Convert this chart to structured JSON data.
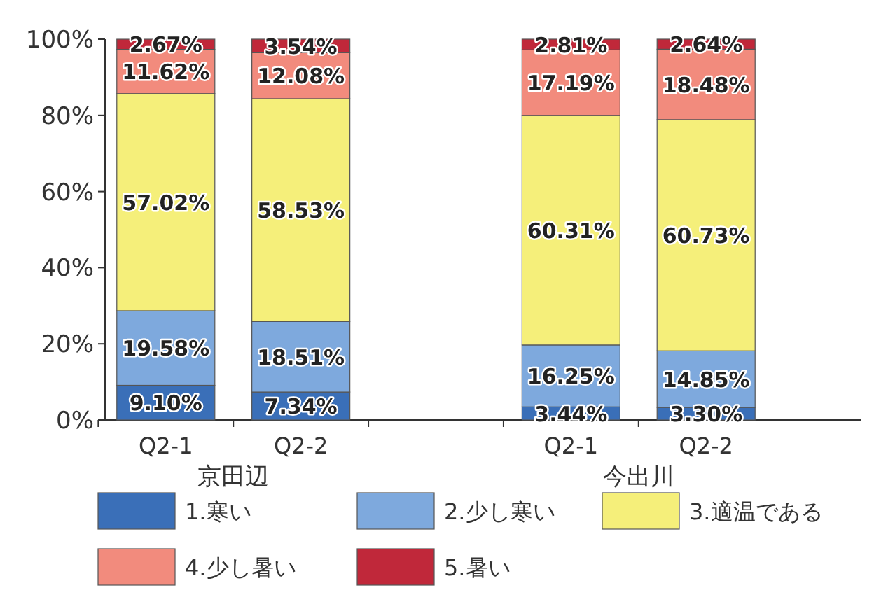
{
  "chart_data": {
    "type": "bar",
    "stacked": true,
    "categories": [
      "Q2-1",
      "Q2-2",
      null,
      "Q2-1",
      "Q2-2"
    ],
    "ylim": [
      0,
      100
    ],
    "yticks": [
      {
        "value": 0,
        "label": "0%"
      },
      {
        "value": 20,
        "label": "20%"
      },
      {
        "value": 40,
        "label": "40%"
      },
      {
        "value": 60,
        "label": "60%"
      },
      {
        "value": 80,
        "label": "80%"
      },
      {
        "value": 100,
        "label": "100%"
      }
    ],
    "legend": "bottom",
    "annotations": [
      "京田辺",
      "今出川"
    ],
    "series": [
      {
        "name": "1.寒い",
        "color": "#3a6fb8",
        "values": [
          9.1,
          7.34,
          null,
          3.44,
          3.3
        ],
        "value_labels": [
          "9.10%",
          "7.34%",
          null,
          "3.44%",
          "3.30%"
        ]
      },
      {
        "name": "2.少し寒い",
        "color": "#7ea9dd",
        "values": [
          19.58,
          18.51,
          null,
          16.25,
          14.85
        ],
        "value_labels": [
          "19.58%",
          "18.51%",
          null,
          "16.25%",
          "14.85%"
        ]
      },
      {
        "name": "3.適温である",
        "color": "#f5ef7a",
        "values": [
          57.02,
          58.53,
          null,
          60.31,
          60.73
        ],
        "value_labels": [
          "57.02%",
          "58.53%",
          null,
          "60.31%",
          "60.73%"
        ]
      },
      {
        "name": "4.少し暑い",
        "color": "#f28b7d",
        "values": [
          11.62,
          12.08,
          null,
          17.19,
          18.48
        ],
        "value_labels": [
          "11.62%",
          "12.08%",
          null,
          "17.19%",
          "18.48%"
        ]
      },
      {
        "name": "5.暑い",
        "color": "#c0283a",
        "values": [
          2.67,
          3.54,
          null,
          2.81,
          2.64
        ],
        "value_labels": [
          "2.67%",
          "3.54%",
          null,
          "2.81%",
          "2.64%"
        ]
      }
    ]
  }
}
